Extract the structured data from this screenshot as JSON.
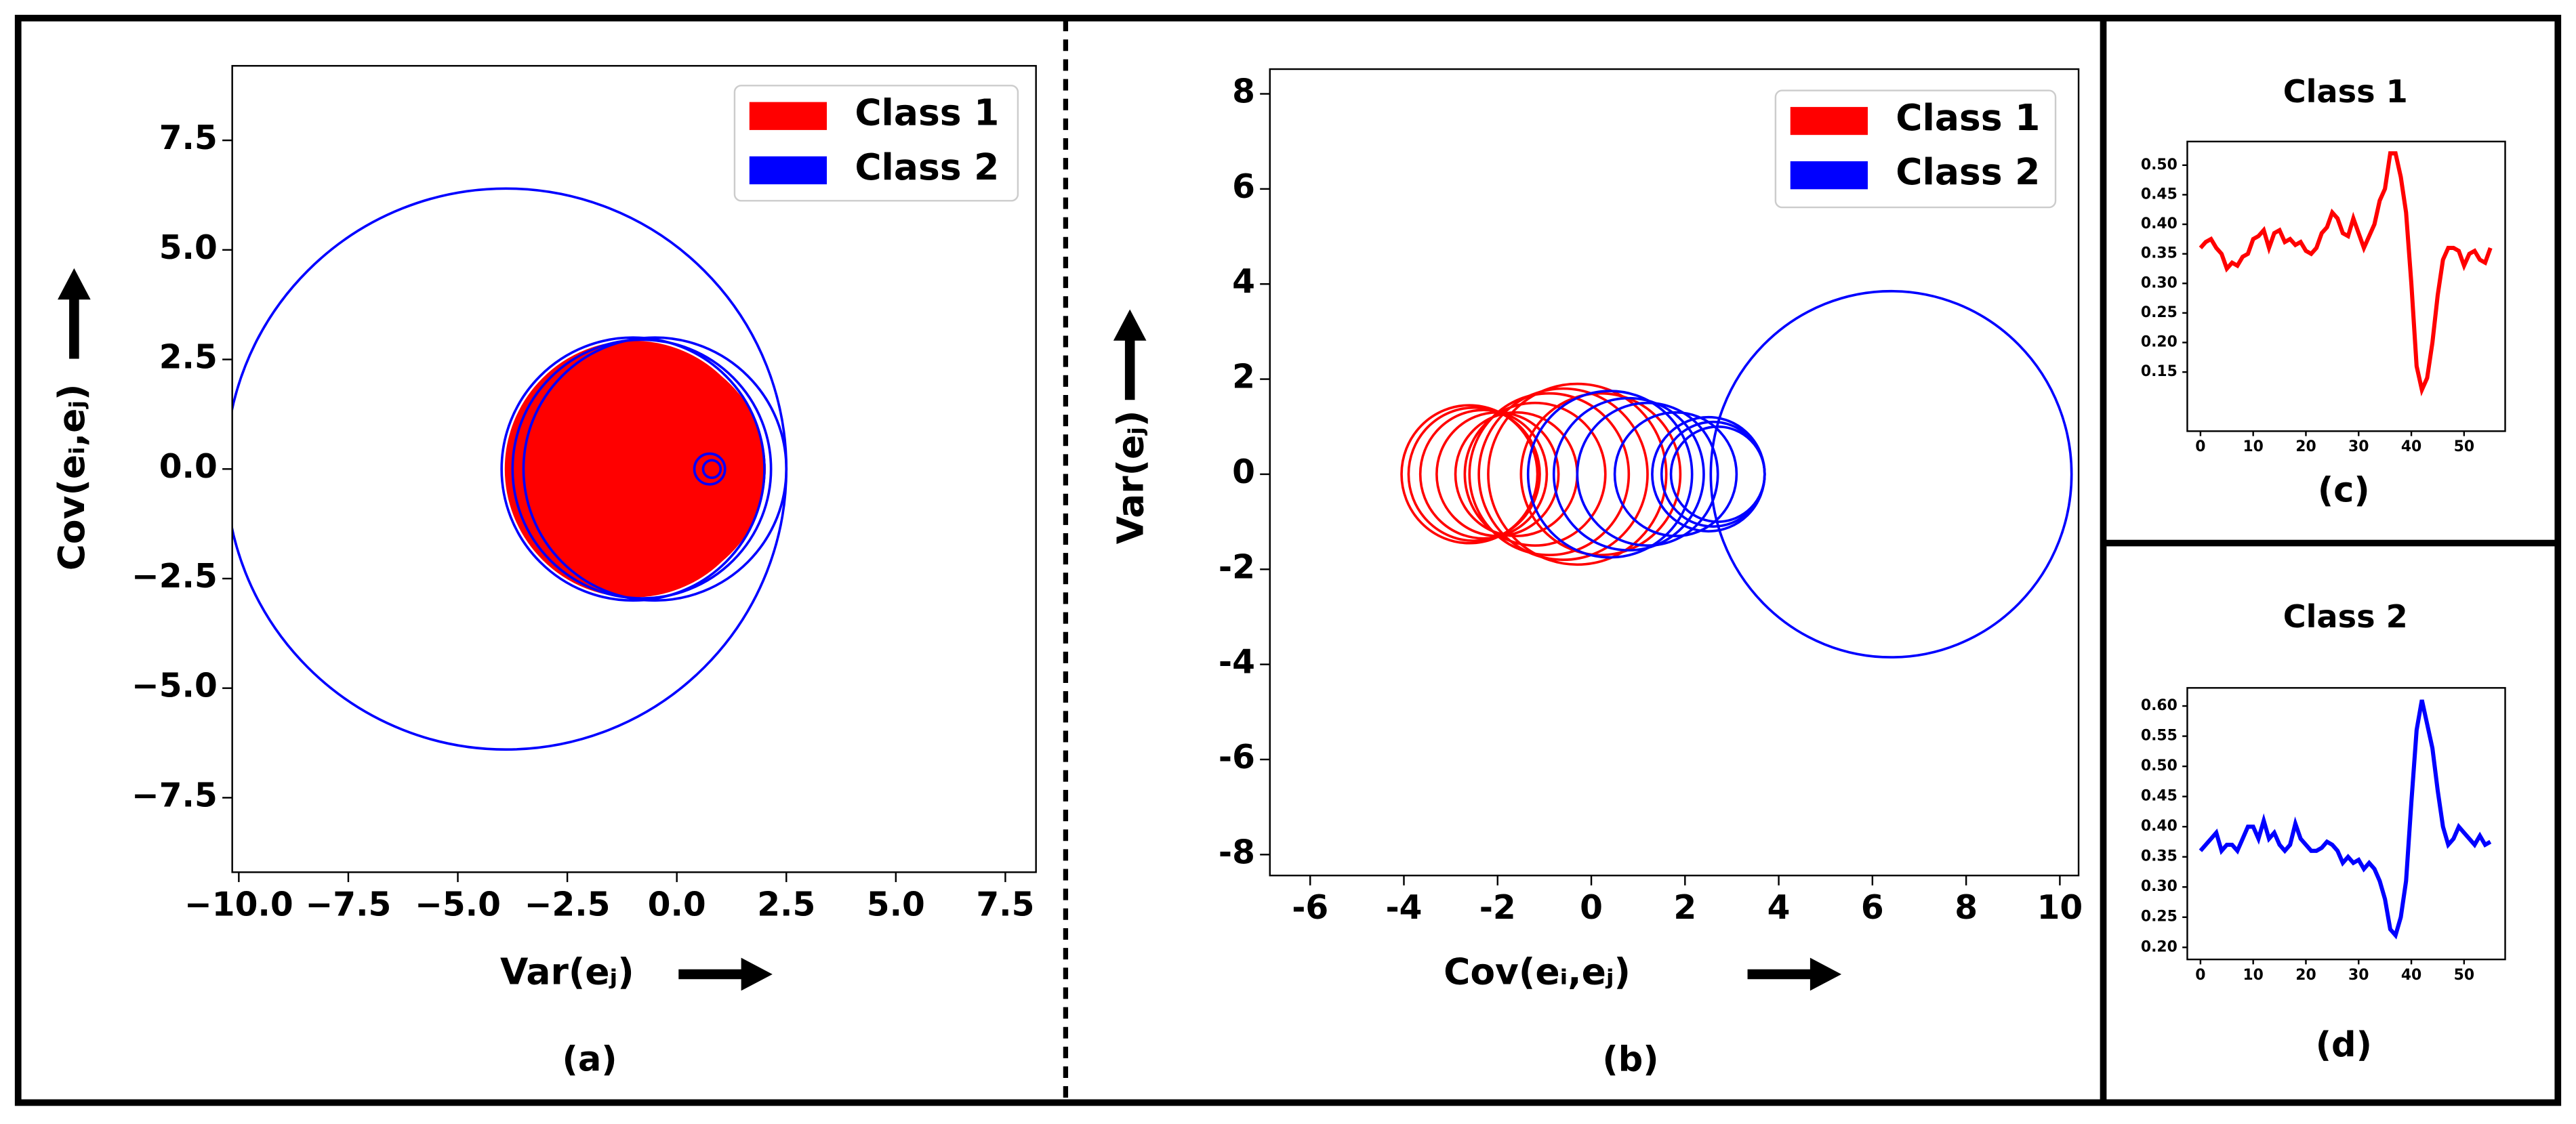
{
  "captions": [
    "(a)",
    "(b)",
    "(c)",
    "(d)"
  ],
  "chart_data": [
    {
      "type": "circles",
      "xlabel": "Var(eⱼ)",
      "ylabel": "Cov(eᵢ,eⱼ)",
      "xlim": [
        -10.15,
        8.2
      ],
      "ylim": [
        -9.2,
        9.2
      ],
      "xticks": [
        {
          "value": -10,
          "label": "−10.0"
        },
        {
          "value": -7.5,
          "label": "−7.5"
        },
        {
          "value": -5,
          "label": "−5.0"
        },
        {
          "value": -2.5,
          "label": "−2.5"
        },
        {
          "value": 0,
          "label": "0.0"
        },
        {
          "value": 2.5,
          "label": "2.5"
        },
        {
          "value": 5,
          "label": "5.0"
        },
        {
          "value": 7.5,
          "label": "7.5"
        }
      ],
      "yticks": [
        {
          "value": -7.5,
          "label": "−7.5"
        },
        {
          "value": -5,
          "label": "−5.0"
        },
        {
          "value": -2.5,
          "label": "−2.5"
        },
        {
          "value": 0,
          "label": "0.0"
        },
        {
          "value": 2.5,
          "label": "2.5"
        },
        {
          "value": 5,
          "label": "5.0"
        },
        {
          "value": 7.5,
          "label": "7.5"
        }
      ],
      "legend": "upper right",
      "series": [
        {
          "name": "Class 1",
          "color": "#ff0000",
          "filled": true,
          "x": [
            -1,
            -1.2,
            -0.9,
            -0.7,
            -0.5,
            -0.3,
            0,
            0.2,
            0.4,
            0.6,
            0.9
          ],
          "y": [
            0,
            0,
            0,
            0,
            0,
            0,
            0,
            0,
            0,
            0,
            0
          ],
          "r": [
            2.9,
            2.6,
            2.8,
            2.7,
            2.5,
            2.3,
            2.0,
            1.8,
            1.4,
            0.9,
            0.25
          ]
        },
        {
          "name": "Class 2",
          "color": "#0000ff",
          "filled": false,
          "x": [
            -3.9,
            -1,
            -0.8,
            -0.5,
            0.75,
            0.8
          ],
          "y": [
            0,
            0,
            0,
            0,
            0,
            0
          ],
          "r": [
            6.4,
            3.0,
            2.95,
            3.0,
            0.35,
            0.2
          ]
        }
      ]
    },
    {
      "type": "circles",
      "xlabel": "Cov(eᵢ,eⱼ)",
      "ylabel": "Var(eⱼ)",
      "xlim": [
        -6.86,
        10.4
      ],
      "ylim": [
        -8.44,
        8.52
      ],
      "xticks": [
        -6,
        -4,
        -2,
        0,
        2,
        4,
        6,
        8,
        10
      ],
      "yticks": [
        -8,
        -6,
        -4,
        -2,
        0,
        2,
        4,
        6,
        8
      ],
      "legend": "upper right",
      "series": [
        {
          "name": "Class 1",
          "color": "#ff0000",
          "filled": false,
          "x": [
            -2.6,
            -2.5,
            -2.3,
            -2.0,
            -1.6,
            -1.2,
            -0.9,
            -0.6,
            -0.3,
            0.2
          ],
          "y": [
            0,
            0,
            0,
            0,
            0,
            0,
            0,
            0,
            0,
            0
          ],
          "r": [
            1.45,
            1.4,
            1.35,
            1.3,
            1.3,
            1.5,
            1.7,
            1.8,
            1.9,
            1.7
          ]
        },
        {
          "name": "Class 2",
          "color": "#0000ff",
          "filled": false,
          "x": [
            0.4,
            0.8,
            1.2,
            1.8,
            2.5,
            2.6,
            2.7,
            6.4
          ],
          "y": [
            0,
            0,
            0,
            0,
            0,
            0,
            0,
            0
          ],
          "r": [
            1.75,
            1.6,
            1.5,
            1.3,
            1.2,
            1.1,
            1.0,
            3.85
          ]
        }
      ]
    },
    {
      "type": "line",
      "title": "Class 1",
      "color": "#ff0000",
      "x": [
        0,
        1,
        2,
        3,
        4,
        5,
        6,
        7,
        8,
        9,
        10,
        11,
        12,
        13,
        14,
        15,
        16,
        17,
        18,
        19,
        20,
        21,
        22,
        23,
        24,
        25,
        26,
        27,
        28,
        29,
        30,
        31,
        32,
        33,
        34,
        35,
        36,
        37,
        38,
        39,
        40,
        41,
        42,
        43,
        44,
        45,
        46,
        47,
        48,
        49,
        50,
        51,
        52,
        53,
        54,
        55
      ],
      "values": [
        0.36,
        0.37,
        0.375,
        0.36,
        0.35,
        0.325,
        0.335,
        0.33,
        0.345,
        0.35,
        0.375,
        0.38,
        0.39,
        0.36,
        0.385,
        0.39,
        0.37,
        0.375,
        0.365,
        0.37,
        0.355,
        0.35,
        0.36,
        0.385,
        0.395,
        0.42,
        0.41,
        0.385,
        0.38,
        0.41,
        0.385,
        0.36,
        0.38,
        0.4,
        0.44,
        0.46,
        0.52,
        0.52,
        0.48,
        0.42,
        0.3,
        0.16,
        0.12,
        0.14,
        0.2,
        0.28,
        0.34,
        0.36,
        0.36,
        0.355,
        0.33,
        0.35,
        0.355,
        0.34,
        0.335,
        0.36
      ],
      "xlim": [
        -2.5,
        57.8
      ],
      "ylim": [
        0.05,
        0.54
      ],
      "xticks": [
        0,
        10,
        20,
        30,
        40,
        50
      ],
      "yticks": [
        0.15,
        {
          "value": 0.2,
          "label": "0.20"
        },
        0.25,
        {
          "value": 0.3,
          "label": "0.30"
        },
        0.35,
        {
          "value": 0.4,
          "label": "0.40"
        },
        0.45,
        {
          "value": 0.5,
          "label": "0.50"
        }
      ]
    },
    {
      "type": "line",
      "title": "Class 2",
      "color": "#0000ff",
      "x": [
        0,
        1,
        2,
        3,
        4,
        5,
        6,
        7,
        8,
        9,
        10,
        11,
        12,
        13,
        14,
        15,
        16,
        17,
        18,
        19,
        20,
        21,
        22,
        23,
        24,
        25,
        26,
        27,
        28,
        29,
        30,
        31,
        32,
        33,
        34,
        35,
        36,
        37,
        38,
        39,
        40,
        41,
        42,
        43,
        44,
        45,
        46,
        47,
        48,
        49,
        50,
        51,
        52,
        53,
        54,
        55
      ],
      "values": [
        0.36,
        0.37,
        0.38,
        0.39,
        0.36,
        0.37,
        0.37,
        0.36,
        0.38,
        0.4,
        0.4,
        0.38,
        0.41,
        0.38,
        0.39,
        0.37,
        0.36,
        0.37,
        0.405,
        0.38,
        0.37,
        0.36,
        0.36,
        0.365,
        0.375,
        0.37,
        0.36,
        0.34,
        0.35,
        0.34,
        0.345,
        0.33,
        0.34,
        0.33,
        0.31,
        0.28,
        0.23,
        0.22,
        0.25,
        0.31,
        0.44,
        0.56,
        0.61,
        0.57,
        0.53,
        0.46,
        0.4,
        0.37,
        0.38,
        0.4,
        0.39,
        0.38,
        0.37,
        0.385,
        0.37,
        0.375
      ],
      "xlim": [
        -2.5,
        57.8
      ],
      "ylim": [
        0.18,
        0.63
      ],
      "xticks": [
        0,
        10,
        20,
        30,
        40,
        50
      ],
      "yticks": [
        {
          "value": 0.2,
          "label": "0.20"
        },
        0.25,
        {
          "value": 0.3,
          "label": "0.30"
        },
        0.35,
        {
          "value": 0.4,
          "label": "0.40"
        },
        0.45,
        {
          "value": 0.5,
          "label": "0.50"
        },
        0.55,
        {
          "value": 0.6,
          "label": "0.60"
        }
      ]
    }
  ]
}
